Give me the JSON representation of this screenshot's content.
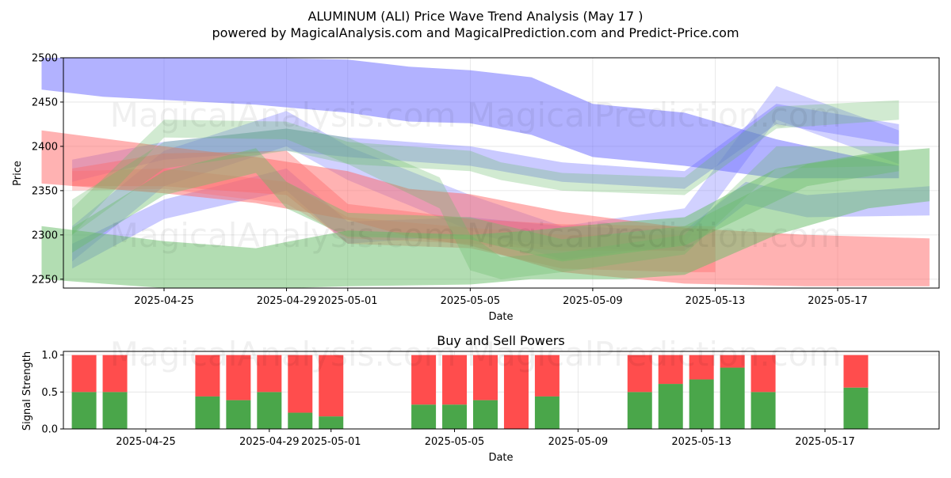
{
  "title_line1": "ALUMINUM (ALI) Price Wave Trend Analysis (May 17 )",
  "title_line2": "powered by MagicalAnalysis.com and MagicalPrediction.com and Predict-Price.com",
  "watermark": "MagicalAnalysis.com    MagicalPrediction.com",
  "colors": {
    "blue": "#6666ff",
    "red": "#ff6666",
    "green": "#66bb66",
    "buy": "#4aa64a",
    "sell": "#ff4d4d"
  },
  "chart_data": [
    {
      "type": "area",
      "title": "",
      "xlabel": "Date",
      "ylabel": "Price",
      "x_range": [
        "2025-04-21",
        "2025-05-20"
      ],
      "ylim": [
        2240,
        2500
      ],
      "y_ticks": [
        2250,
        2300,
        2350,
        2400,
        2450,
        2500
      ],
      "x_ticks": [
        "2025-04-25",
        "2025-04-29",
        "2025-05-01",
        "2025-05-05",
        "2025-05-09",
        "2025-05-13",
        "2025-05-17"
      ],
      "grid": true,
      "series": [
        {
          "color": "blue",
          "opacity": 0.5,
          "x": [
            "2025-04-21",
            "2025-04-23",
            "2025-04-28",
            "2025-05-01",
            "2025-05-03",
            "2025-05-05",
            "2025-05-07",
            "2025-05-09",
            "2025-05-12",
            "2025-05-15",
            "2025-05-19"
          ],
          "upper": [
            2500,
            2503,
            2503,
            2498,
            2490,
            2486,
            2478,
            2448,
            2438,
            2408,
            2378
          ],
          "lower": [
            2464,
            2456,
            2447,
            2438,
            2428,
            2426,
            2413,
            2388,
            2378,
            2364,
            2364
          ]
        },
        {
          "color": "blue",
          "opacity": 0.35,
          "x": [
            "2025-04-22",
            "2025-04-25",
            "2025-04-29",
            "2025-05-01",
            "2025-05-05",
            "2025-05-08",
            "2025-05-12",
            "2025-05-15",
            "2025-05-19"
          ],
          "upper": [
            2385,
            2405,
            2420,
            2410,
            2400,
            2382,
            2372,
            2448,
            2425
          ],
          "lower": [
            2360,
            2385,
            2395,
            2388,
            2378,
            2360,
            2352,
            2425,
            2402
          ]
        },
        {
          "color": "blue",
          "opacity": 0.3,
          "x": [
            "2025-04-22",
            "2025-04-25",
            "2025-04-29",
            "2025-05-01",
            "2025-05-05",
            "2025-05-08",
            "2025-05-12",
            "2025-05-15",
            "2025-05-19"
          ],
          "upper": [
            2310,
            2395,
            2440,
            2400,
            2345,
            2310,
            2330,
            2468,
            2418
          ],
          "lower": [
            2270,
            2355,
            2400,
            2362,
            2305,
            2272,
            2290,
            2430,
            2380
          ]
        },
        {
          "color": "blue",
          "opacity": 0.35,
          "x": [
            "2025-04-22",
            "2025-04-25",
            "2025-04-29",
            "2025-05-01",
            "2025-05-05",
            "2025-05-08",
            "2025-05-12",
            "2025-05-14",
            "2025-05-16",
            "2025-05-20"
          ],
          "upper": [
            2290,
            2340,
            2375,
            2315,
            2320,
            2310,
            2305,
            2360,
            2345,
            2355
          ],
          "lower": [
            2262,
            2318,
            2350,
            2290,
            2300,
            2286,
            2282,
            2335,
            2320,
            2322
          ]
        },
        {
          "color": "red",
          "opacity": 0.5,
          "x": [
            "2025-04-21",
            "2025-04-25",
            "2025-04-28",
            "2025-05-01",
            "2025-05-03",
            "2025-05-05",
            "2025-05-08",
            "2025-05-12",
            "2025-05-16",
            "2025-05-20"
          ],
          "upper": [
            2418,
            2400,
            2388,
            2372,
            2352,
            2346,
            2326,
            2308,
            2300,
            2296
          ],
          "lower": [
            2358,
            2347,
            2336,
            2317,
            2298,
            2288,
            2258,
            2245,
            2242,
            2242
          ]
        },
        {
          "color": "red",
          "opacity": 0.4,
          "x": [
            "2025-04-22",
            "2025-04-25",
            "2025-04-29",
            "2025-05-01",
            "2025-05-05",
            "2025-05-08",
            "2025-05-12",
            "2025-05-13"
          ],
          "upper": [
            2375,
            2392,
            2395,
            2335,
            2318,
            2312,
            2310,
            2310
          ],
          "lower": [
            2355,
            2355,
            2345,
            2290,
            2285,
            2262,
            2258,
            2258
          ]
        },
        {
          "color": "red",
          "opacity": 0.3,
          "x": [
            "2025-04-22",
            "2025-04-25",
            "2025-04-29",
            "2025-05-01",
            "2025-05-05",
            "2025-05-08",
            "2025-05-12"
          ],
          "upper": [
            2372,
            2375,
            2360,
            2320,
            2308,
            2300,
            2300
          ],
          "lower": [
            2350,
            2352,
            2335,
            2296,
            2290,
            2282,
            2282
          ]
        },
        {
          "color": "green",
          "opacity": 0.5,
          "x": [
            "2025-04-21",
            "2025-04-25",
            "2025-04-28",
            "2025-04-29",
            "2025-05-01",
            "2025-05-05",
            "2025-05-07",
            "2025-05-10",
            "2025-05-12",
            "2025-05-15",
            "2025-05-18",
            "2025-05-20"
          ],
          "upper": [
            2310,
            2293,
            2285,
            2292,
            2305,
            2300,
            2305,
            2315,
            2320,
            2375,
            2392,
            2398
          ],
          "lower": [
            2250,
            2240,
            2240,
            2240,
            2242,
            2244,
            2250,
            2250,
            2255,
            2300,
            2330,
            2338
          ]
        },
        {
          "color": "green",
          "opacity": 0.3,
          "x": [
            "2025-04-22",
            "2025-04-25",
            "2025-04-29",
            "2025-05-01",
            "2025-05-05",
            "2025-05-06",
            "2025-05-08",
            "2025-05-12",
            "2025-05-15",
            "2025-05-19"
          ],
          "upper": [
            2330,
            2430,
            2428,
            2405,
            2395,
            2382,
            2370,
            2365,
            2445,
            2452
          ],
          "lower": [
            2300,
            2410,
            2408,
            2380,
            2372,
            2362,
            2350,
            2345,
            2420,
            2430
          ]
        },
        {
          "color": "green",
          "opacity": 0.3,
          "x": [
            "2025-04-22",
            "2025-04-25",
            "2025-04-29",
            "2025-05-01",
            "2025-05-04",
            "2025-05-05",
            "2025-05-06",
            "2025-05-08",
            "2025-05-12",
            "2025-05-15",
            "2025-05-19"
          ],
          "upper": [
            2340,
            2405,
            2420,
            2410,
            2365,
            2300,
            2275,
            2280,
            2300,
            2400,
            2400
          ],
          "lower": [
            2300,
            2375,
            2395,
            2380,
            2330,
            2260,
            2250,
            2258,
            2278,
            2375,
            2378
          ]
        },
        {
          "color": "green",
          "opacity": 0.4,
          "x": [
            "2025-04-22",
            "2025-04-25",
            "2025-04-28",
            "2025-04-29",
            "2025-05-01",
            "2025-05-05",
            "2025-05-08",
            "2025-05-12",
            "2025-05-16",
            "2025-05-19"
          ],
          "upper": [
            2308,
            2372,
            2398,
            2360,
            2325,
            2320,
            2295,
            2310,
            2380,
            2395
          ],
          "lower": [
            2280,
            2345,
            2370,
            2330,
            2298,
            2295,
            2270,
            2288,
            2355,
            2372
          ]
        }
      ]
    },
    {
      "type": "bar",
      "title": "Buy and Sell Powers",
      "xlabel": "Date",
      "ylabel": "Signal Strength",
      "ylim": [
        0,
        1.05
      ],
      "y_ticks": [
        0.0,
        0.5,
        1.0
      ],
      "x_ticks": [
        "2025-04-25",
        "2025-04-29",
        "2025-05-01",
        "2025-05-05",
        "2025-05-09",
        "2025-05-13",
        "2025-05-17"
      ],
      "categories": [
        "2025-04-23",
        "2025-04-24",
        "2025-04-27",
        "2025-04-28",
        "2025-04-29",
        "2025-04-30",
        "2025-05-01",
        "2025-05-04",
        "2025-05-05",
        "2025-05-06",
        "2025-05-07",
        "2025-05-08",
        "2025-05-11",
        "2025-05-12",
        "2025-05-13",
        "2025-05-14",
        "2025-05-15",
        "2025-05-18"
      ],
      "series": [
        {
          "name": "Buy",
          "values": [
            0.5,
            0.5,
            0.44,
            0.39,
            0.5,
            0.22,
            0.17,
            0.33,
            0.33,
            0.39,
            0.0,
            0.44,
            0.5,
            0.61,
            0.67,
            0.83,
            0.5,
            0.56
          ]
        },
        {
          "name": "Sell",
          "values": [
            0.5,
            0.5,
            0.56,
            0.61,
            0.5,
            0.78,
            0.83,
            0.67,
            0.67,
            0.61,
            1.0,
            0.56,
            0.5,
            0.39,
            0.33,
            0.17,
            0.5,
            0.44
          ]
        }
      ]
    }
  ]
}
